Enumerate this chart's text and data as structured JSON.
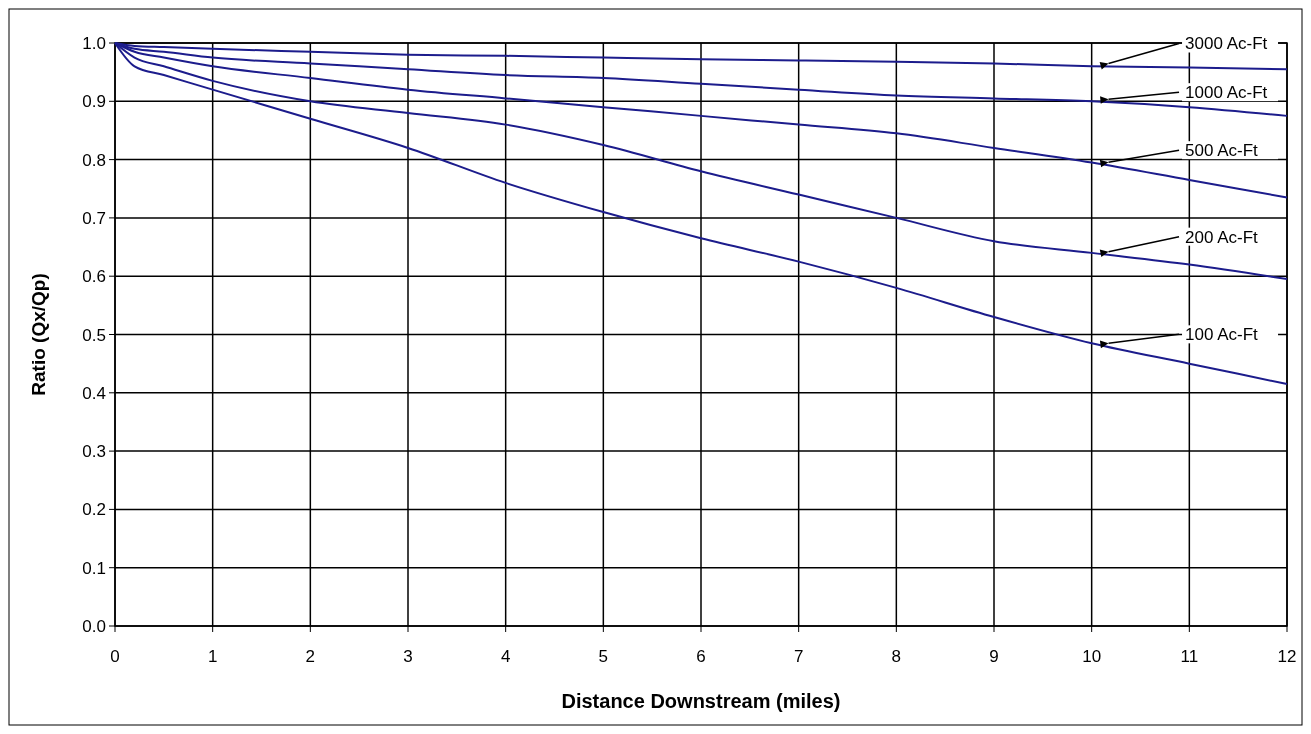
{
  "chart_data": {
    "type": "line",
    "xlabel": "Distance Downstream (miles)",
    "ylabel": "Ratio (Qx/Qp)",
    "x": [
      0,
      0.2,
      0.5,
      1,
      2,
      3,
      4,
      5,
      6,
      7,
      8,
      9,
      10,
      11,
      12
    ],
    "series": [
      {
        "name": "100 Ac-Ft",
        "color": "#1c1c8c",
        "values": [
          1.0,
          0.96,
          0.945,
          0.92,
          0.87,
          0.82,
          0.76,
          0.71,
          0.665,
          0.625,
          0.58,
          0.53,
          0.485,
          0.45,
          0.415
        ]
      },
      {
        "name": "200 Ac-Ft",
        "color": "#1c1c8c",
        "values": [
          1.0,
          0.975,
          0.96,
          0.935,
          0.9,
          0.88,
          0.86,
          0.825,
          0.78,
          0.74,
          0.7,
          0.66,
          0.64,
          0.62,
          0.595
        ]
      },
      {
        "name": "500 Ac-Ft",
        "color": "#1c1c8c",
        "values": [
          1.0,
          0.985,
          0.975,
          0.96,
          0.94,
          0.92,
          0.905,
          0.89,
          0.875,
          0.86,
          0.845,
          0.82,
          0.795,
          0.765,
          0.735
        ]
      },
      {
        "name": "1000 Ac-Ft",
        "color": "#1c1c8c",
        "values": [
          1.0,
          0.99,
          0.985,
          0.975,
          0.965,
          0.955,
          0.945,
          0.94,
          0.93,
          0.92,
          0.91,
          0.905,
          0.9,
          0.89,
          0.875
        ]
      },
      {
        "name": "3000 Ac-Ft",
        "color": "#1c1c8c",
        "values": [
          1.0,
          0.995,
          0.993,
          0.99,
          0.985,
          0.98,
          0.978,
          0.975,
          0.972,
          0.97,
          0.968,
          0.965,
          0.96,
          0.958,
          0.955
        ]
      }
    ],
    "xlim": [
      0,
      12
    ],
    "xticks": [
      0,
      1,
      2,
      3,
      4,
      5,
      6,
      7,
      8,
      9,
      10,
      11,
      12
    ],
    "ylim": [
      0,
      1
    ],
    "yticks": [
      {
        "value": 0,
        "label": "0.0"
      },
      0.1,
      0.2,
      0.3,
      0.4,
      0.5,
      0.6,
      0.7,
      0.8,
      0.9,
      {
        "value": 1,
        "label": "1.0"
      }
    ],
    "grid": true,
    "marker": "none",
    "line_style": "solid"
  }
}
